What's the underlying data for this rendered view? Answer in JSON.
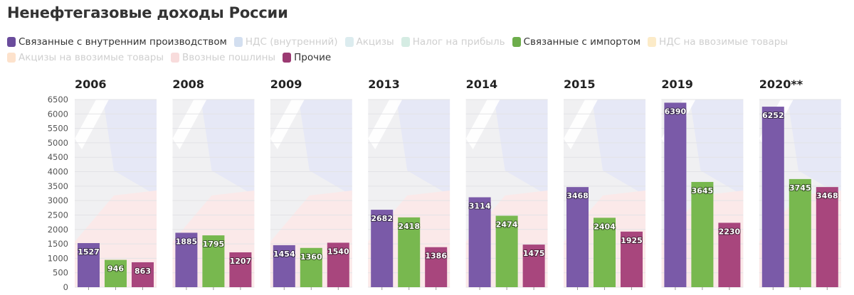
{
  "title": "Ненефтегазовые доходы России",
  "legend": [
    {
      "label": "Связанные с внутренним производством",
      "color": "#6a4c9c",
      "active": true
    },
    {
      "label": "НДС (внутренний)",
      "color": "#d3dff0",
      "active": false
    },
    {
      "label": "Акцизы",
      "color": "#dcecef",
      "active": false
    },
    {
      "label": "Налог на прибыль",
      "color": "#d5ece3",
      "active": false
    },
    {
      "label": "Связанные с импортом",
      "color": "#6dad4b",
      "active": true
    },
    {
      "label": "НДС на ввозимые товары",
      "color": "#fcebc8",
      "active": false
    },
    {
      "label": "Акцизы на ввозимые товары",
      "color": "#fde2cc",
      "active": false
    },
    {
      "label": "Ввозные пошлины",
      "color": "#f8dcdc",
      "active": false
    },
    {
      "label": "Прочие",
      "color": "#9b3a72",
      "active": true
    }
  ],
  "chart_data": {
    "type": "bar",
    "ylim": [
      0,
      6500
    ],
    "yticks": [
      0,
      500,
      1000,
      1500,
      2000,
      2500,
      3000,
      3500,
      4000,
      4500,
      5000,
      5500,
      6000,
      6500
    ],
    "grid": true,
    "legend_position": "top",
    "colors": [
      "#7a5aa8",
      "#78b84f",
      "#a8467d"
    ],
    "panels": [
      {
        "title": "2006",
        "values": [
          1527,
          946,
          863
        ]
      },
      {
        "title": "2008",
        "values": [
          1885,
          1795,
          1207
        ]
      },
      {
        "title": "2009",
        "values": [
          1454,
          1360,
          1540
        ]
      },
      {
        "title": "2013",
        "values": [
          2682,
          2418,
          1386
        ]
      },
      {
        "title": "2014",
        "values": [
          3114,
          2474,
          1475
        ]
      },
      {
        "title": "2015",
        "values": [
          3468,
          2404,
          1925
        ]
      },
      {
        "title": "2019",
        "values": [
          6390,
          3645,
          2230
        ]
      },
      {
        "title": "2020**",
        "values": [
          6252,
          3745,
          3468
        ]
      }
    ]
  }
}
